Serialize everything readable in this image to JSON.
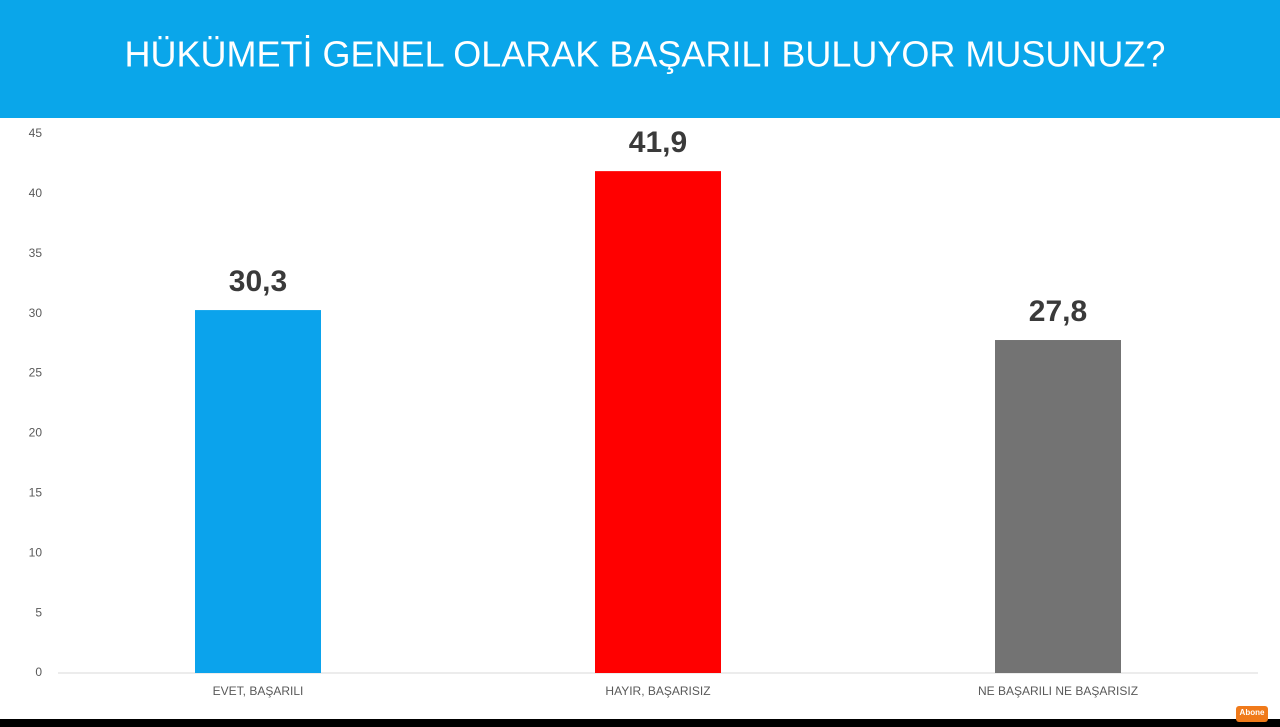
{
  "chart_data": {
    "type": "bar",
    "title": "HÜKÜMETİ GENEL OLARAK BAŞARILI BULUYOR MUSUNUZ?",
    "categories": [
      "EVET, BAŞARILI",
      "HAYIR, BAŞARISIZ",
      "NE BAŞARILI NE BAŞARISIZ"
    ],
    "values": [
      30.3,
      41.9,
      27.8
    ],
    "value_labels": [
      "30,3",
      "41,9",
      "27,8"
    ],
    "colors": [
      "#0ba3ec",
      "#ff0000",
      "#737373"
    ],
    "ylim": [
      0,
      45
    ],
    "yticks": [
      0,
      5,
      10,
      15,
      20,
      25,
      30,
      35,
      40,
      45
    ],
    "grid": false
  },
  "badge": "Abone"
}
